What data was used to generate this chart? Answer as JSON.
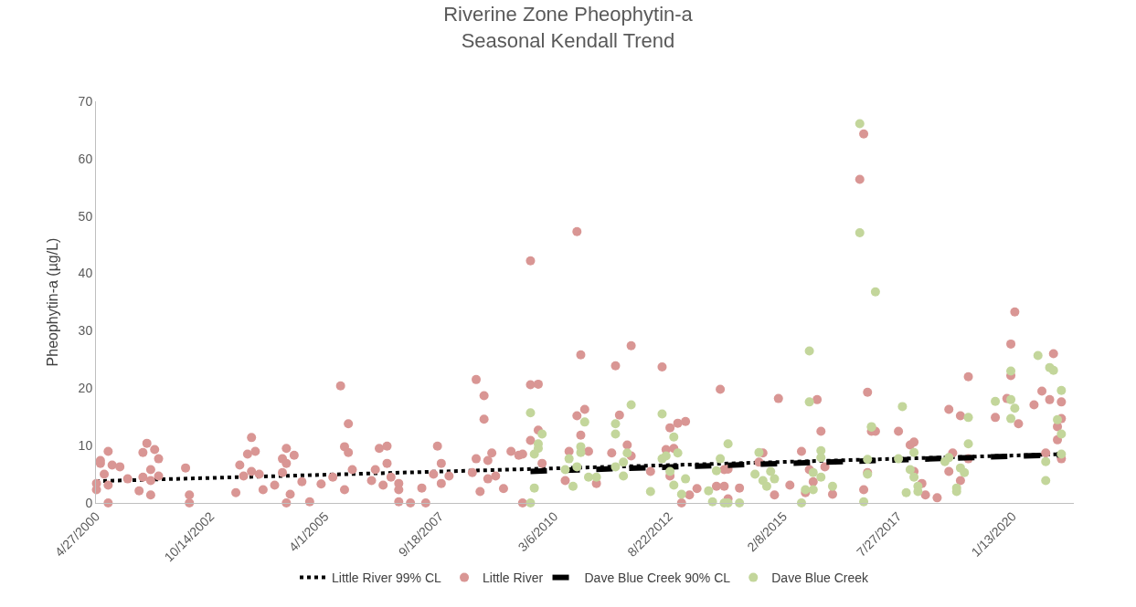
{
  "chart_data": {
    "type": "scatter",
    "title": "Riverine Zone Pheophytin-a\nSeasonal Kendall Trend",
    "ylabel": "Pheophytin-a (µg/L)",
    "xlim": [
      "2000-04-27",
      "2021-05-10"
    ],
    "xticks": [
      {
        "value": "2000-04-27",
        "label": "4/27/2000"
      },
      {
        "value": "2002-10-14",
        "label": "10/14/2002"
      },
      {
        "value": "2005-04-01",
        "label": "4/1/2005"
      },
      {
        "value": "2007-09-18",
        "label": "9/18/2007"
      },
      {
        "value": "2010-03-06",
        "label": "3/6/2010"
      },
      {
        "value": "2012-08-22",
        "label": "8/22/2012"
      },
      {
        "value": "2015-02-08",
        "label": "2/8/2015"
      },
      {
        "value": "2017-07-27",
        "label": "7/27/2017"
      },
      {
        "value": "2020-01-13",
        "label": "1/13/2020"
      }
    ],
    "ylim": [
      0,
      70
    ],
    "yticks": [
      0,
      10,
      20,
      30,
      40,
      50,
      60,
      70
    ],
    "grid": false,
    "legend": "bottom",
    "series": [
      {
        "name": "Little River 99% CL",
        "type": "line",
        "line_style": "dotted",
        "marker": "none",
        "color": "#000000",
        "x": [
          "2000-04-27",
          "2021-02"
        ],
        "values": [
          3.8,
          8.5
        ]
      },
      {
        "name": "Little River",
        "type": "scatter",
        "marker": "circle",
        "color": "#d99694",
        "x": [
          "2000-05",
          "2000-05",
          "2000-06",
          "2000-06",
          "2000-08",
          "2000-07",
          "2000-08",
          "2000-08",
          "2000-09",
          "2000-11",
          "2001-01",
          "2001-04",
          "2001-05",
          "2001-06",
          "2001-08",
          "2001-09",
          "2001-07",
          "2001-05",
          "2001-07",
          "2001-07",
          "2001-09",
          "2002-04",
          "2002-05",
          "2002-05",
          "2003-05",
          "2003-06",
          "2003-08",
          "2003-09",
          "2003-10",
          "2003-07",
          "2003-09",
          "2003-11",
          "2003-12",
          "2004-03",
          "2004-05",
          "2004-06",
          "2004-08",
          "2004-06",
          "2004-05",
          "2004-07",
          "2004-06",
          "2004-10",
          "2004-12",
          "2005-03",
          "2005-06",
          "2005-08",
          "2005-10",
          "2005-09",
          "2005-10",
          "2005-11",
          "2005-09",
          "2006-04",
          "2006-06",
          "2006-08",
          "2006-08",
          "2006-05",
          "2006-07",
          "2006-09",
          "2006-11",
          "2006-11",
          "2006-11",
          "2007-02",
          "2007-06",
          "2007-05",
          "2007-09",
          "2007-08",
          "2007-10",
          "2007-10",
          "2007-12",
          "2008-06",
          "2008-07",
          "2008-08",
          "2008-07",
          "2008-09",
          "2008-09",
          "2008-10",
          "2008-11",
          "2008-10",
          "2008-12",
          "2009-02",
          "2009-04",
          "2009-06",
          "2009-07",
          "2009-07",
          "2009-09",
          "2009-11",
          "2009-09",
          "2009-11",
          "2009-12",
          "2009-09",
          "2010-09",
          "2010-09",
          "2010-11",
          "2010-10",
          "2010-10",
          "2010-07",
          "2010-06",
          "2010-12",
          "2011-02",
          "2011-07",
          "2011-11",
          "2011-08",
          "2011-10",
          "2011-11",
          "2011-06",
          "2012-04",
          "2012-07",
          "2012-08",
          "2012-09",
          "2012-11",
          "2013-01",
          "2012-10",
          "2012-09",
          "2013-02",
          "2012-12",
          "2013-04",
          "2013-10",
          "2013-09",
          "2013-11",
          "2013-12",
          "2013-11",
          "2013-12",
          "2014-03",
          "2014-08",
          "2014-09",
          "2014-12",
          "2015-01",
          "2015-04",
          "2015-07",
          "2015-09",
          "2015-11",
          "2015-12",
          "2016-01",
          "2015-10",
          "2015-08",
          "2016-03",
          "2016-11",
          "2016-12",
          "2017-01",
          "2017-02",
          "2016-12",
          "2016-10",
          "2016-11",
          "2017-08",
          "2017-11",
          "2017-12",
          "2017-12",
          "2018-02",
          "2018-03",
          "2018-06",
          "2018-09",
          "2018-12",
          "2019-02",
          "2018-09",
          "2018-10",
          "2018-12",
          "2019-02",
          "2019-09",
          "2019-12",
          "2020-01",
          "2020-01",
          "2020-03",
          "2020-07",
          "2020-09",
          "2020-12",
          "2020-11",
          "2021-01",
          "2021-01",
          "2021-02",
          "2021-02",
          "2020-10",
          "2021-02",
          "2020-02"
        ],
        "values": [
          2.3,
          3.4,
          6.9,
          7.4,
          9.0,
          5.0,
          3.1,
          0,
          6.6,
          6.3,
          4.2,
          2.1,
          8.8,
          10.4,
          9.3,
          7.7,
          5.8,
          4.5,
          3.9,
          1.4,
          4.7,
          6.1,
          1.4,
          0,
          1.8,
          6.6,
          8.5,
          11.4,
          9.0,
          4.7,
          5.5,
          5.0,
          2.3,
          3.1,
          7.7,
          9.5,
          8.3,
          6.9,
          5.3,
          1.5,
          0,
          3.7,
          0.2,
          3.3,
          4.5,
          20.4,
          13.8,
          9.8,
          8.8,
          5.8,
          2.3,
          3.9,
          9.5,
          9.9,
          6.9,
          5.8,
          3.1,
          4.5,
          2.3,
          0.2,
          3.4,
          0,
          0,
          2.6,
          9.9,
          5.0,
          6.9,
          3.4,
          4.7,
          5.3,
          7.7,
          2.0,
          21.5,
          18.7,
          14.6,
          7.4,
          8.7,
          4.2,
          4.7,
          2.5,
          9.0,
          8.3,
          0,
          8.5,
          20.6,
          20.7,
          10.9,
          12.7,
          6.9,
          42.2,
          47.3,
          15.2,
          16.3,
          25.8,
          11.8,
          9.0,
          3.9,
          9.0,
          3.4,
          23.9,
          27.4,
          15.3,
          10.1,
          8.2,
          8.7,
          5.5,
          23.7,
          9.3,
          13.1,
          13.9,
          14.2,
          9.5,
          4.7,
          1.4,
          0,
          2.5,
          19.8,
          2.9,
          5.8,
          5.9,
          2.9,
          0.7,
          2.6,
          7.1,
          8.7,
          1.4,
          18.2,
          3.1,
          9.0,
          5.8,
          18.0,
          12.5,
          6.3,
          3.7,
          1.8,
          1.5,
          2.3,
          19.3,
          12.5,
          12.5,
          5.3,
          56.4,
          64.3,
          12.5,
          10.1,
          10.6,
          5.5,
          3.4,
          1.4,
          0.9,
          16.3,
          15.2,
          22.0,
          5.5,
          8.7,
          3.9,
          7.7,
          14.9,
          18.2,
          22.2,
          27.7,
          13.8,
          17.1,
          19.5,
          26.0,
          18.0,
          11.0,
          13.3,
          14.7,
          17.6,
          8.7,
          7.7,
          33.3
        ]
      },
      {
        "name": "Dave Blue Creek 90% CL",
        "type": "line",
        "line_style": "dashed",
        "marker": "none",
        "color": "#000000",
        "x": [
          "2009-09",
          "2021-02"
        ],
        "values": [
          5.5,
          8.4
        ]
      },
      {
        "name": "Dave Blue Creek",
        "type": "scatter",
        "marker": "circle",
        "color": "#c3d69b",
        "x": [
          "2009-09",
          "2009-09",
          "2009-10",
          "2009-10",
          "2009-11",
          "2009-12",
          "2009-11",
          "2010-06",
          "2010-07",
          "2010-08",
          "2010-09",
          "2010-10",
          "2010-11",
          "2010-10",
          "2010-12",
          "2011-02",
          "2011-07",
          "2011-07",
          "2011-11",
          "2011-07",
          "2011-09",
          "2011-10",
          "2011-09",
          "2012-04",
          "2012-07",
          "2012-07",
          "2012-08",
          "2012-09",
          "2012-10",
          "2012-10",
          "2012-11",
          "2013-01",
          "2012-12",
          "2013-07",
          "2013-08",
          "2013-10",
          "2013-09",
          "2013-12",
          "2013-12",
          "2013-11",
          "2014-03",
          "2014-08",
          "2014-07",
          "2014-09",
          "2014-11",
          "2014-12",
          "2014-10",
          "2015-09",
          "2015-09",
          "2015-07",
          "2015-08",
          "2015-10",
          "2015-12",
          "2015-12",
          "2015-10",
          "2015-12",
          "2016-03",
          "2016-11",
          "2016-12",
          "2016-12",
          "2017-01",
          "2017-09",
          "2017-08",
          "2017-11",
          "2017-12",
          "2017-12",
          "2017-10",
          "2018-01",
          "2018-01",
          "2018-08",
          "2018-09",
          "2018-12",
          "2019-01",
          "2019-02",
          "2018-11",
          "2018-11",
          "2019-02",
          "2019-09",
          "2020-01",
          "2020-01",
          "2020-02",
          "2020-01",
          "2020-08",
          "2020-11",
          "2020-12",
          "2021-02",
          "2021-01",
          "2021-02",
          "2020-10",
          "2020-10",
          "2021-02",
          "2016-10",
          "2016-10",
          "2017-02",
          "2017-01"
        ],
        "values": [
          0,
          15.7,
          2.6,
          8.5,
          10.3,
          12.0,
          9.5,
          5.8,
          7.7,
          2.9,
          6.3,
          8.8,
          14.1,
          9.8,
          4.5,
          4.5,
          12.0,
          13.8,
          17.1,
          6.3,
          4.7,
          8.7,
          7.1,
          2.0,
          15.5,
          7.7,
          8.2,
          5.5,
          3.1,
          11.5,
          8.7,
          4.2,
          1.5,
          2.1,
          0.2,
          7.7,
          5.6,
          10.3,
          0,
          0,
          0,
          8.8,
          5.0,
          3.9,
          5.5,
          4.2,
          2.9,
          26.5,
          17.6,
          0,
          2.3,
          2.3,
          9.1,
          7.9,
          5.3,
          4.5,
          2.9,
          0.2,
          7.6,
          5.0,
          13.3,
          16.8,
          7.7,
          5.8,
          4.5,
          8.8,
          1.8,
          2.9,
          2.0,
          7.2,
          7.9,
          6.1,
          5.3,
          10.3,
          2.6,
          2.0,
          14.9,
          17.7,
          18.0,
          14.7,
          16.5,
          23.0,
          25.7,
          23.6,
          23.1,
          19.6,
          14.5,
          12.0,
          7.2,
          3.9,
          8.5,
          66.1,
          47.1,
          36.8,
          13.2
        ]
      }
    ]
  }
}
